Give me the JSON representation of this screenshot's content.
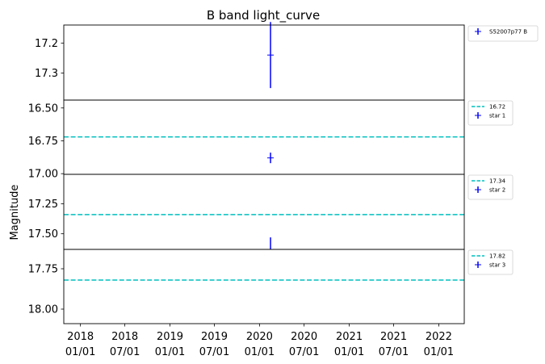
{
  "chart_data": {
    "type": "scatter",
    "title": "B band light_curve",
    "ylabel": "Magnitude",
    "xlabel": "",
    "x_ticks": [
      {
        "date": "2018-01-01",
        "line1": "2018",
        "line2": "01/01"
      },
      {
        "date": "2018-07-01",
        "line1": "2018",
        "line2": "07/01"
      },
      {
        "date": "2019-01-01",
        "line1": "2019",
        "line2": "01/01"
      },
      {
        "date": "2019-07-01",
        "line1": "2019",
        "line2": "07/01"
      },
      {
        "date": "2020-01-01",
        "line1": "2020",
        "line2": "01/01"
      },
      {
        "date": "2020-07-01",
        "line1": "2020",
        "line2": "07/01"
      },
      {
        "date": "2021-01-01",
        "line1": "2021",
        "line2": "01/01"
      },
      {
        "date": "2021-07-01",
        "line1": "2021",
        "line2": "07/01"
      },
      {
        "date": "2022-01-01",
        "line1": "2022",
        "line2": "01/01"
      }
    ],
    "xlim": [
      "2017-10-25",
      "2022-04-15"
    ],
    "panels": [
      {
        "name": "S52007p77 B",
        "ylim": [
          17.14,
          17.39
        ],
        "y_inverted": true,
        "yticks": [
          "17.2",
          "17.3"
        ],
        "points": [
          {
            "x": "2020-02-15",
            "y": 17.24,
            "yerr_low": 0.11,
            "yerr_high": 0.11
          }
        ],
        "reference_line": null,
        "legend": [
          {
            "kind": "errorbar",
            "label": "S52007p77 B"
          }
        ]
      },
      {
        "name": "star 1",
        "ylim": [
          16.44,
          17.005
        ],
        "y_inverted": true,
        "yticks": [
          "16.50",
          "16.75",
          "17.00"
        ],
        "points": [
          {
            "x": "2020-02-15",
            "y": 16.88,
            "yerr_low": 0.04,
            "yerr_high": 0.04
          }
        ],
        "reference_line": 16.72,
        "legend": [
          {
            "kind": "dash",
            "label": "16.72"
          },
          {
            "kind": "errorbar",
            "label": "star 1"
          }
        ]
      },
      {
        "name": "star 2",
        "ylim": [
          17.005,
          17.63
        ],
        "y_inverted": true,
        "yticks": [
          "17.25",
          "17.50"
        ],
        "points": [
          {
            "x": "2020-02-15",
            "y": 17.63,
            "yerr_low": 0.1,
            "yerr_high": 0.0
          }
        ],
        "reference_line": 17.34,
        "legend": [
          {
            "kind": "dash",
            "label": "17.34"
          },
          {
            "kind": "errorbar",
            "label": "star 2"
          }
        ]
      },
      {
        "name": "star 3",
        "ylim": [
          17.63,
          18.09
        ],
        "y_inverted": true,
        "yticks": [
          "17.75",
          "18.00"
        ],
        "points": [],
        "reference_line": 17.82,
        "legend": [
          {
            "kind": "dash",
            "label": "17.82"
          },
          {
            "kind": "errorbar",
            "label": "star 3"
          }
        ]
      }
    ],
    "colors": {
      "points": "#0000ff",
      "reference_line": "#00bfbf",
      "axes": "#000000"
    },
    "grid": false,
    "legend_placement": "outside-right"
  }
}
